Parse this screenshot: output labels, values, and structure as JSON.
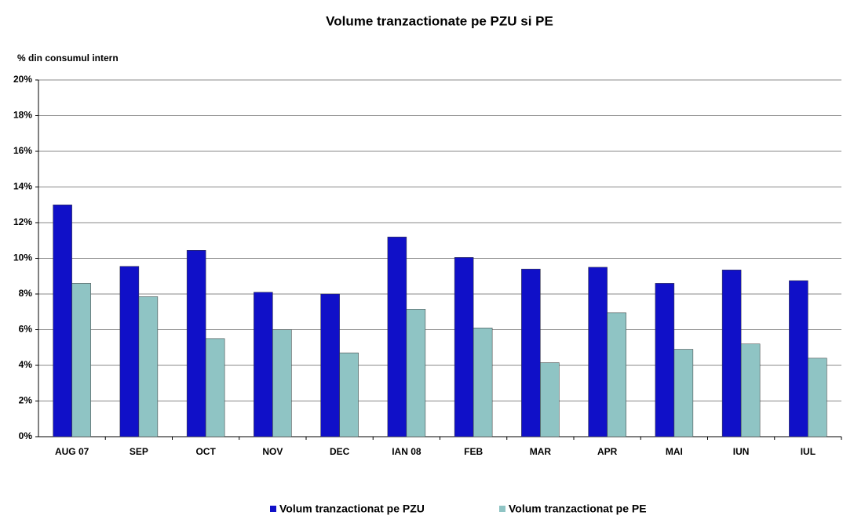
{
  "chart_data": {
    "type": "bar",
    "title": "Volume tranzactionate pe PZU si PE",
    "y_label": "% din consumul intern",
    "categories": [
      "AUG 07",
      "SEP",
      "OCT",
      "NOV",
      "DEC",
      "IAN 08",
      "FEB",
      "MAR",
      "APR",
      "MAI",
      "IUN",
      "IUL"
    ],
    "series": [
      {
        "name": "Volum tranzactionat pe PZU",
        "color": "#1010c8",
        "values": [
          13.0,
          9.55,
          10.45,
          8.1,
          8.0,
          11.2,
          10.05,
          9.4,
          9.5,
          8.6,
          9.35,
          8.75
        ]
      },
      {
        "name": "Volum tranzactionat pe PE",
        "color": "#8fc4c4",
        "values": [
          8.6,
          7.85,
          5.5,
          6.0,
          4.7,
          7.15,
          6.1,
          4.15,
          6.95,
          4.9,
          5.2,
          4.4
        ]
      }
    ],
    "ylim": [
      0,
      20
    ],
    "yticks": [
      {
        "value": 0,
        "label": "0%"
      },
      {
        "value": 2,
        "label": "2%"
      },
      {
        "value": 4,
        "label": "4%"
      },
      {
        "value": 6,
        "label": "6%"
      },
      {
        "value": 8,
        "label": "8%"
      },
      {
        "value": 10,
        "label": "10%"
      },
      {
        "value": 12,
        "label": "12%"
      },
      {
        "value": 14,
        "label": "14%"
      },
      {
        "value": 16,
        "label": "16%"
      },
      {
        "value": 18,
        "label": "18%"
      },
      {
        "value": 20,
        "label": "20%"
      }
    ],
    "grid": true,
    "legend": "bottom"
  }
}
